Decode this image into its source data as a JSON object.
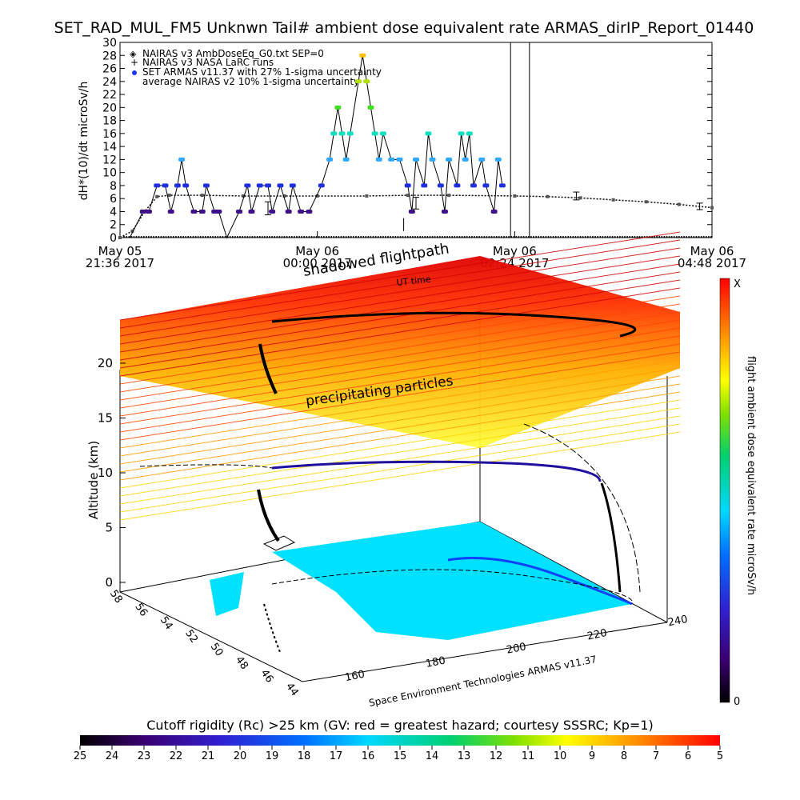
{
  "title": "SET_RAD_MUL_FM5 Unknwn Tail#  ambient dose equivalent rate ARMAS_dirIP_Report_01440",
  "chart_data": [
    {
      "type": "scatter",
      "ylabel": "dH*(10)/dt microSv/h",
      "ylim": [
        0,
        30
      ],
      "y_ticks": [
        "0",
        "2",
        "4",
        "6",
        "8",
        "10",
        "12",
        "14",
        "16",
        "18",
        "20",
        "22",
        "24",
        "26",
        "28",
        "30"
      ],
      "x_ticks": [
        {
          "date": "May 05",
          "time": "21:36 2017"
        },
        {
          "date": "May 06",
          "time": "00:00 2017"
        },
        {
          "date": "May 06",
          "time": "02:24 2017"
        },
        {
          "date": "May 06",
          "time": "04:48 2017"
        }
      ],
      "xlim_hours": [
        0,
        7.2
      ],
      "legend": [
        "NAIRAS v3 AmbDoseEq_G0.txt SEP=0",
        "NAIRAS v3 NASA LaRC runs",
        "SET ARMAS v11.37 with 27% 1-sigma uncertainty",
        "average NAIRAS v2 10% 1-sigma uncertainty"
      ],
      "legend_position": "top-left",
      "nairas_series": [
        [
          0.0,
          0
        ],
        [
          0.15,
          1
        ],
        [
          0.3,
          4
        ],
        [
          0.45,
          6.3
        ],
        [
          0.6,
          6.5
        ],
        [
          1.0,
          6.5
        ],
        [
          1.5,
          6.4
        ],
        [
          2.0,
          6.4
        ],
        [
          2.4,
          6.4
        ],
        [
          3.0,
          6.4
        ],
        [
          3.5,
          6.5
        ],
        [
          4.0,
          6.5
        ],
        [
          4.8,
          6.4
        ],
        [
          5.2,
          6.3
        ],
        [
          5.6,
          6.1
        ],
        [
          6.0,
          5.8
        ],
        [
          6.4,
          5.5
        ],
        [
          6.8,
          5.1
        ],
        [
          7.2,
          4.6
        ]
      ],
      "nairas_errorbars": [
        [
          1.8,
          4.5,
          1.0
        ],
        [
          3.6,
          5.3,
          0.9
        ],
        [
          5.55,
          6.4,
          0.6
        ],
        [
          7.05,
          4.8,
          0.5
        ]
      ],
      "armas_points": [
        [
          0.12,
          0
        ],
        [
          0.28,
          4
        ],
        [
          0.35,
          4
        ],
        [
          0.45,
          8
        ],
        [
          0.55,
          8
        ],
        [
          0.62,
          4
        ],
        [
          0.7,
          8
        ],
        [
          0.75,
          12
        ],
        [
          0.8,
          8
        ],
        [
          0.9,
          4
        ],
        [
          1.0,
          4
        ],
        [
          1.05,
          8
        ],
        [
          1.15,
          4
        ],
        [
          1.2,
          4
        ],
        [
          1.3,
          0
        ],
        [
          1.45,
          4
        ],
        [
          1.55,
          8
        ],
        [
          1.6,
          4
        ],
        [
          1.7,
          8
        ],
        [
          1.8,
          8
        ],
        [
          1.85,
          4
        ],
        [
          1.95,
          8
        ],
        [
          2.05,
          4
        ],
        [
          2.1,
          8
        ],
        [
          2.2,
          4
        ],
        [
          2.3,
          4
        ],
        [
          2.45,
          8
        ],
        [
          2.55,
          12
        ],
        [
          2.6,
          16
        ],
        [
          2.65,
          20
        ],
        [
          2.7,
          16
        ],
        [
          2.75,
          12
        ],
        [
          2.8,
          16
        ],
        [
          2.9,
          24
        ],
        [
          2.95,
          28
        ],
        [
          3.0,
          24
        ],
        [
          3.05,
          20
        ],
        [
          3.1,
          16
        ],
        [
          3.15,
          12
        ],
        [
          3.2,
          16
        ],
        [
          3.3,
          12
        ],
        [
          3.4,
          12
        ],
        [
          3.5,
          8
        ],
        [
          3.55,
          4
        ],
        [
          3.6,
          12
        ],
        [
          3.7,
          8
        ],
        [
          3.75,
          16
        ],
        [
          3.8,
          12
        ],
        [
          3.9,
          8
        ],
        [
          3.95,
          4
        ],
        [
          4.0,
          12
        ],
        [
          4.1,
          8
        ],
        [
          4.15,
          16
        ],
        [
          4.2,
          12
        ],
        [
          4.25,
          16
        ],
        [
          4.3,
          8
        ],
        [
          4.4,
          12
        ],
        [
          4.45,
          8
        ],
        [
          4.55,
          4
        ],
        [
          4.6,
          12
        ],
        [
          4.65,
          8
        ]
      ],
      "armas_errorbar": [
        3.45,
        2.0,
        1.0
      ]
    },
    {
      "type": "scatter",
      "subtitle": "shadowed flightpath",
      "annotations": [
        "precipitating particles",
        "UT time"
      ],
      "zlabel": "Altitude (km)",
      "z_ticks": [
        "0",
        "5",
        "10",
        "15",
        "20"
      ],
      "lat_ticks": [
        "44",
        "46",
        "48",
        "50",
        "52",
        "54",
        "56",
        "58"
      ],
      "lon_ticks": [
        "160",
        "180",
        "200",
        "220",
        "240"
      ],
      "credit": "Space Environment Technologies ARMAS v11.37",
      "colorbar_label": "flight ambient dose equivalent rate microSv/h",
      "colorbar_ends": {
        "top": "X",
        "bottom": "0"
      }
    },
    {
      "type": "heatmap",
      "label": "Cutoff rigidity (Rc) >25 km (GV: red = greatest hazard; courtesy SSSRC; Kp=1)",
      "ticks": [
        "25",
        "24",
        "23",
        "22",
        "21",
        "20",
        "19",
        "18",
        "17",
        "16",
        "15",
        "14",
        "13",
        "12",
        "11",
        "10",
        "9",
        "8",
        "7",
        "6",
        "5"
      ]
    }
  ]
}
